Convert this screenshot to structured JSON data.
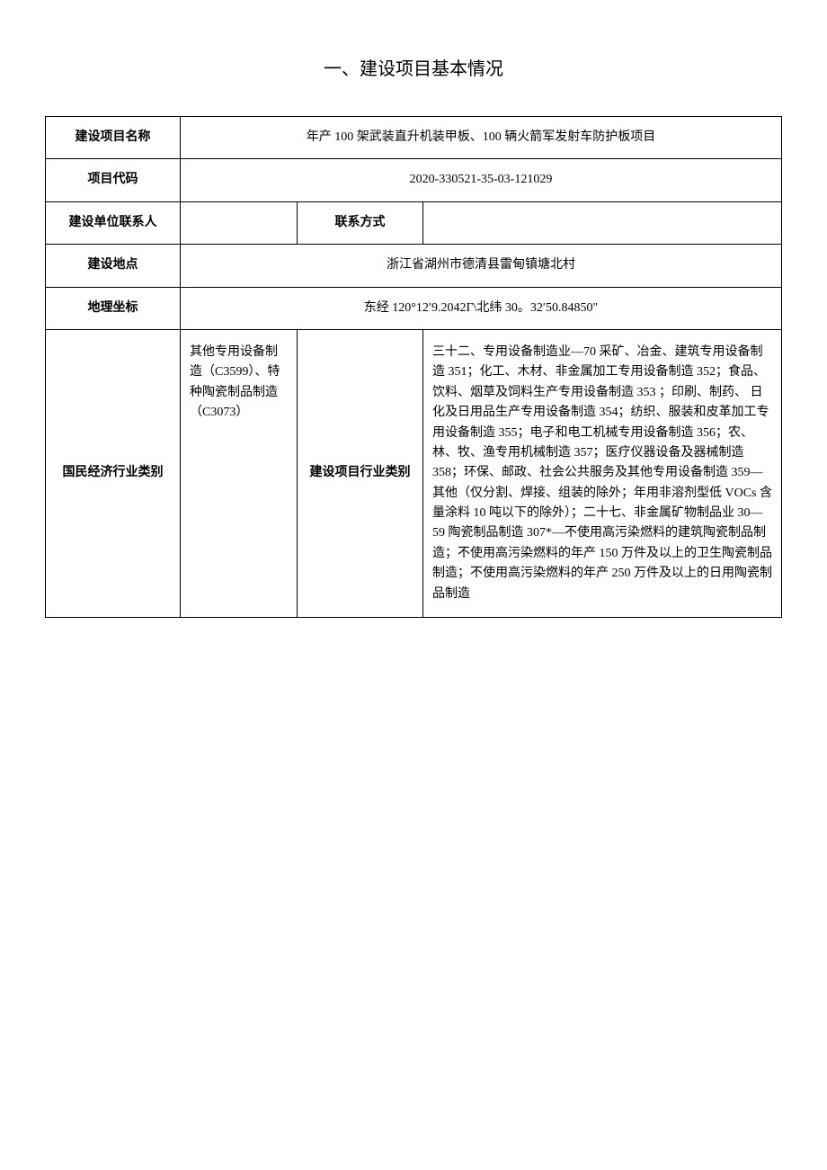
{
  "page": {
    "title": "一、建设项目基本情况"
  },
  "table": {
    "rows": {
      "project_name": {
        "label": "建设项目名称",
        "value": "年产 100 架武装直升机装甲板、100 辆火箭军发射车防护板项目"
      },
      "project_code": {
        "label": "项目代码",
        "value": "2020-330521-35-03-121029"
      },
      "contact_person": {
        "label": "建设单位联系人",
        "value": ""
      },
      "contact_method": {
        "label": "联系方式",
        "value": ""
      },
      "location": {
        "label": "建设地点",
        "value": "浙江省湖州市德清县雷甸镇塘北村"
      },
      "coordinates": {
        "label": "地理坐标",
        "value": "东经 120°12′9.2042Γ\\北纬 30。32′50.84850\""
      },
      "national_industry": {
        "label": "国民经济行业类别",
        "value": "其他专用设备制造（C3599）、特种陶瓷制品制造（C3073）"
      },
      "project_industry": {
        "label": "建设项目行业类别",
        "value": "三十二、专用设备制造业—70 采矿、冶金、建筑专用设备制造 351；化工、木材、非金属加工专用设备制造 352；食品、饮料、烟草及饲料生产专用设备制造 353 ；印刷、制药、\n日化及日用品生产专用设备制造 354；纺织、服装和皮革加工专用设备制造 355；电子和电工机械专用设备制造 356；农、林、牧、渔专用机械制造 357；医疗仪器设备及器械制造 358；环保、邮政、社会公共服务及其他专用设备制造 359—其他（仅分割、焊接、组装的除外；年用非溶剂型低 VOCs 含量涂料 10 吨以下的除外）；二十七、非金属矿物制品业 30—59 陶瓷制品制造 307*—不使用高污染燃料的建筑陶瓷制品制造；不使用高污染燃料的年产 150 万件及以上的卫生陶瓷制品制造；不使用高污染燃料的年产 250 万件及以上的日用陶瓷制品制造"
      }
    }
  },
  "styling": {
    "background_color": "#ffffff",
    "text_color": "#000000",
    "border_color": "#000000",
    "title_fontsize": 20,
    "cell_fontsize": 14,
    "font_family": "SimSun"
  }
}
